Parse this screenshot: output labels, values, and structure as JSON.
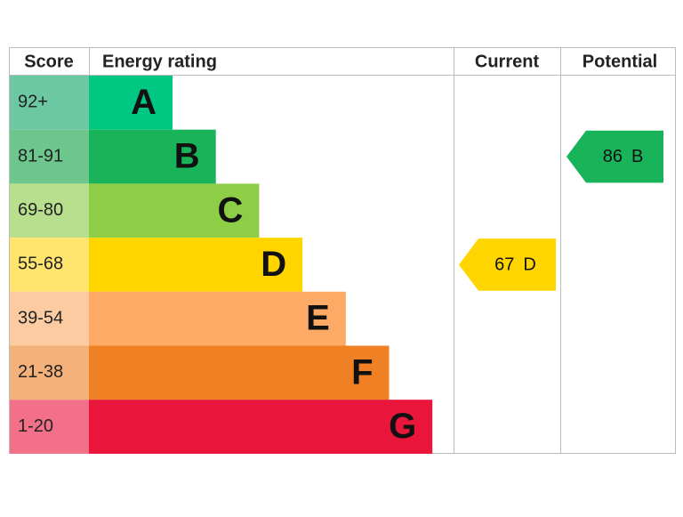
{
  "header": {
    "score": "Score",
    "rating": "Energy rating",
    "current": "Current",
    "potential": "Potential"
  },
  "bands": [
    {
      "score": "92+",
      "letter": "A",
      "color": "#00c781",
      "score_color": "#6cc8a2"
    },
    {
      "score": "81-91",
      "letter": "B",
      "color": "#19b459",
      "score_color": "#6dc68c"
    },
    {
      "score": "69-80",
      "letter": "C",
      "color": "#8dce46",
      "score_color": "#b8df8e"
    },
    {
      "score": "55-68",
      "letter": "D",
      "color": "#ffd500",
      "score_color": "#ffe56e"
    },
    {
      "score": "39-54",
      "letter": "E",
      "color": "#fcaa65",
      "score_color": "#fdcba2"
    },
    {
      "score": "21-38",
      "letter": "F",
      "color": "#ef8023",
      "score_color": "#f5b17a"
    },
    {
      "score": "1-20",
      "letter": "G",
      "color": "#e9153b",
      "score_color": "#f27088"
    }
  ],
  "current": {
    "value": 67,
    "letter": "D",
    "color": "#ffd500"
  },
  "potential": {
    "value": 86,
    "letter": "B",
    "color": "#19b459"
  }
}
